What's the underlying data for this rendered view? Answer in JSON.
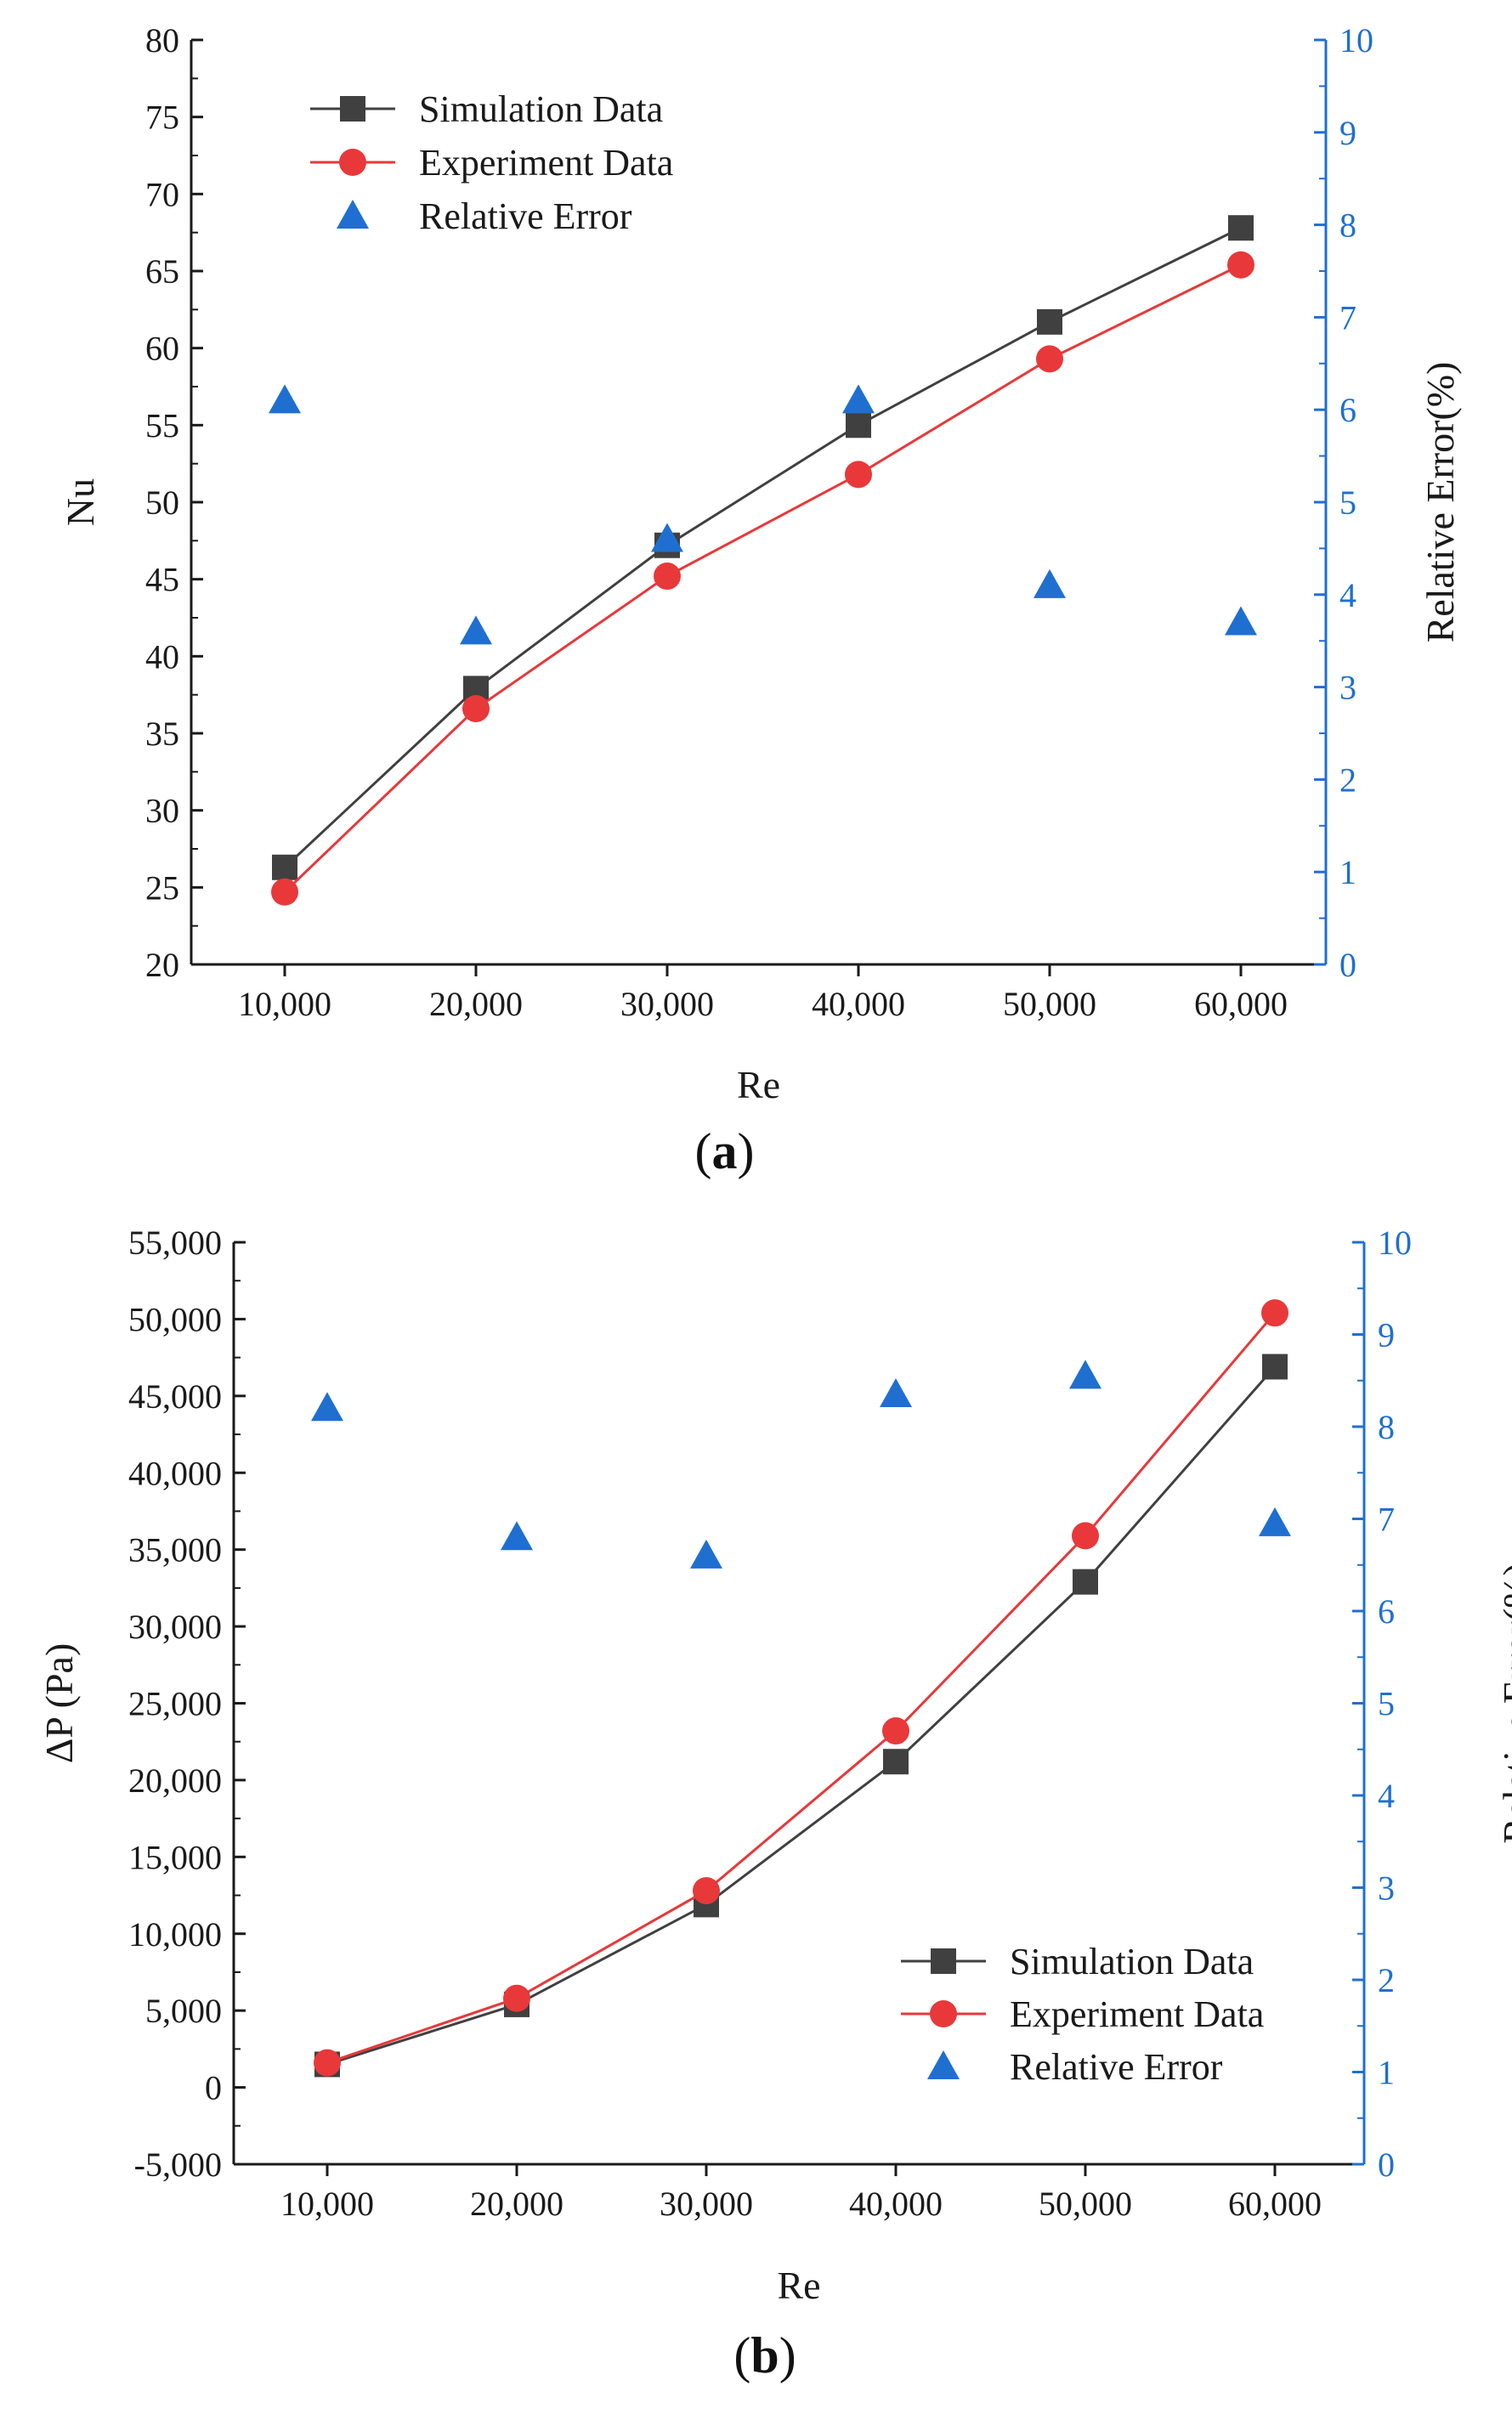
{
  "colors": {
    "simulation": "#404040",
    "experiment": "#e8383a",
    "error": "#1f6fd1",
    "axis": "#1a1a1a",
    "right_axis": "#1f6fd1"
  },
  "chart_data": [
    {
      "type": "line",
      "panel_label": "(a)",
      "panel_letter": "a",
      "xlabel": "Re",
      "ylabel": "Nu",
      "y2label": "Relative Error(%)",
      "categories": [
        "10,000",
        "20,000",
        "30,000",
        "40,000",
        "50,000",
        "60,000"
      ],
      "x": [
        10000,
        20000,
        30000,
        40000,
        50000,
        60000
      ],
      "ylim": [
        20,
        80
      ],
      "yticks": [
        20,
        25,
        30,
        35,
        40,
        45,
        50,
        55,
        60,
        65,
        70,
        75,
        80
      ],
      "ytick_labels": [
        "20",
        "25",
        "30",
        "35",
        "40",
        "45",
        "50",
        "55",
        "60",
        "65",
        "70",
        "75",
        "80"
      ],
      "y2lim": [
        0,
        10
      ],
      "y2ticks": [
        0,
        1,
        2,
        3,
        4,
        5,
        6,
        7,
        8,
        9,
        10
      ],
      "y2tick_labels": [
        "0",
        "1",
        "2",
        "3",
        "4",
        "5",
        "6",
        "7",
        "8",
        "9",
        "10"
      ],
      "legend_position": "top-left",
      "series": [
        {
          "name": "Simulation Data",
          "marker": "square",
          "axis": "left",
          "line": true,
          "values": [
            26.3,
            37.9,
            47.2,
            55.0,
            61.7,
            67.8
          ]
        },
        {
          "name": "Experiment Data",
          "marker": "circle",
          "axis": "left",
          "line": true,
          "values": [
            24.7,
            36.6,
            45.2,
            51.8,
            59.3,
            65.4
          ]
        },
        {
          "name": "Relative Error",
          "marker": "triangle",
          "axis": "right",
          "line": false,
          "values": [
            6.1,
            3.6,
            4.6,
            6.1,
            4.1,
            3.7
          ]
        }
      ]
    },
    {
      "type": "line",
      "panel_label": "(b)",
      "panel_letter": "b",
      "xlabel": "Re",
      "ylabel": "ΔP (Pa)",
      "y2label": "Relative Error(%)",
      "categories": [
        "10,000",
        "20,000",
        "30,000",
        "40,000",
        "50,000",
        "60,000"
      ],
      "x": [
        10000,
        20000,
        30000,
        40000,
        50000,
        60000
      ],
      "ylim": [
        -5000,
        55000
      ],
      "yticks": [
        -5000,
        0,
        5000,
        10000,
        15000,
        20000,
        25000,
        30000,
        35000,
        40000,
        45000,
        50000,
        55000
      ],
      "ytick_labels": [
        "-5,000",
        "0",
        "5,000",
        "10,000",
        "15,000",
        "20,000",
        "25,000",
        "30,000",
        "35,000",
        "40,000",
        "45,000",
        "50,000",
        "55,000"
      ],
      "y2lim": [
        0,
        10
      ],
      "y2ticks": [
        0,
        1,
        2,
        3,
        4,
        5,
        6,
        7,
        8,
        9,
        10
      ],
      "y2tick_labels": [
        "0",
        "1",
        "2",
        "3",
        "4",
        "5",
        "6",
        "7",
        "8",
        "9",
        "10"
      ],
      "legend_position": "bottom-right",
      "series": [
        {
          "name": "Simulation Data",
          "marker": "square",
          "axis": "left",
          "line": true,
          "values": [
            1500,
            5400,
            11900,
            21200,
            32900,
            46900
          ]
        },
        {
          "name": "Experiment Data",
          "marker": "circle",
          "axis": "left",
          "line": true,
          "values": [
            1600,
            5800,
            12800,
            23200,
            35900,
            50400
          ]
        },
        {
          "name": "Relative Error",
          "marker": "triangle",
          "axis": "right",
          "line": false,
          "values": [
            8.2,
            6.8,
            6.6,
            8.35,
            8.55,
            6.95
          ]
        }
      ]
    }
  ]
}
